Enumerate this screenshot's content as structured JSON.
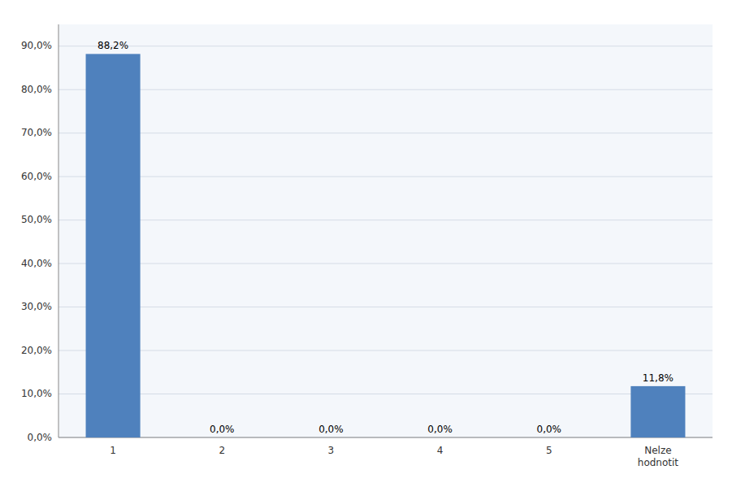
{
  "chart_data": {
    "type": "bar",
    "categories": [
      "1",
      "2",
      "3",
      "4",
      "5",
      "Nelze\nhodnotit"
    ],
    "values": [
      88.2,
      0.0,
      0.0,
      0.0,
      0.0,
      11.8
    ],
    "value_labels": [
      "88,2%",
      "0,0%",
      "0,0%",
      "0,0%",
      "0,0%",
      "11,8%"
    ],
    "color": "#4f81bd",
    "ylim": [
      0,
      95
    ],
    "yticks": [
      {
        "value": 0,
        "label": "0,0%"
      },
      {
        "value": 10,
        "label": "10,0%"
      },
      {
        "value": 20,
        "label": "20,0%"
      },
      {
        "value": 30,
        "label": "30,0%"
      },
      {
        "value": 40,
        "label": "40,0%"
      },
      {
        "value": 50,
        "label": "50,0%"
      },
      {
        "value": 60,
        "label": "60,0%"
      },
      {
        "value": 70,
        "label": "70,0%"
      },
      {
        "value": 80,
        "label": "80,0%"
      },
      {
        "value": 90,
        "label": "90,0%"
      }
    ],
    "grid": true,
    "data_labels": true
  }
}
